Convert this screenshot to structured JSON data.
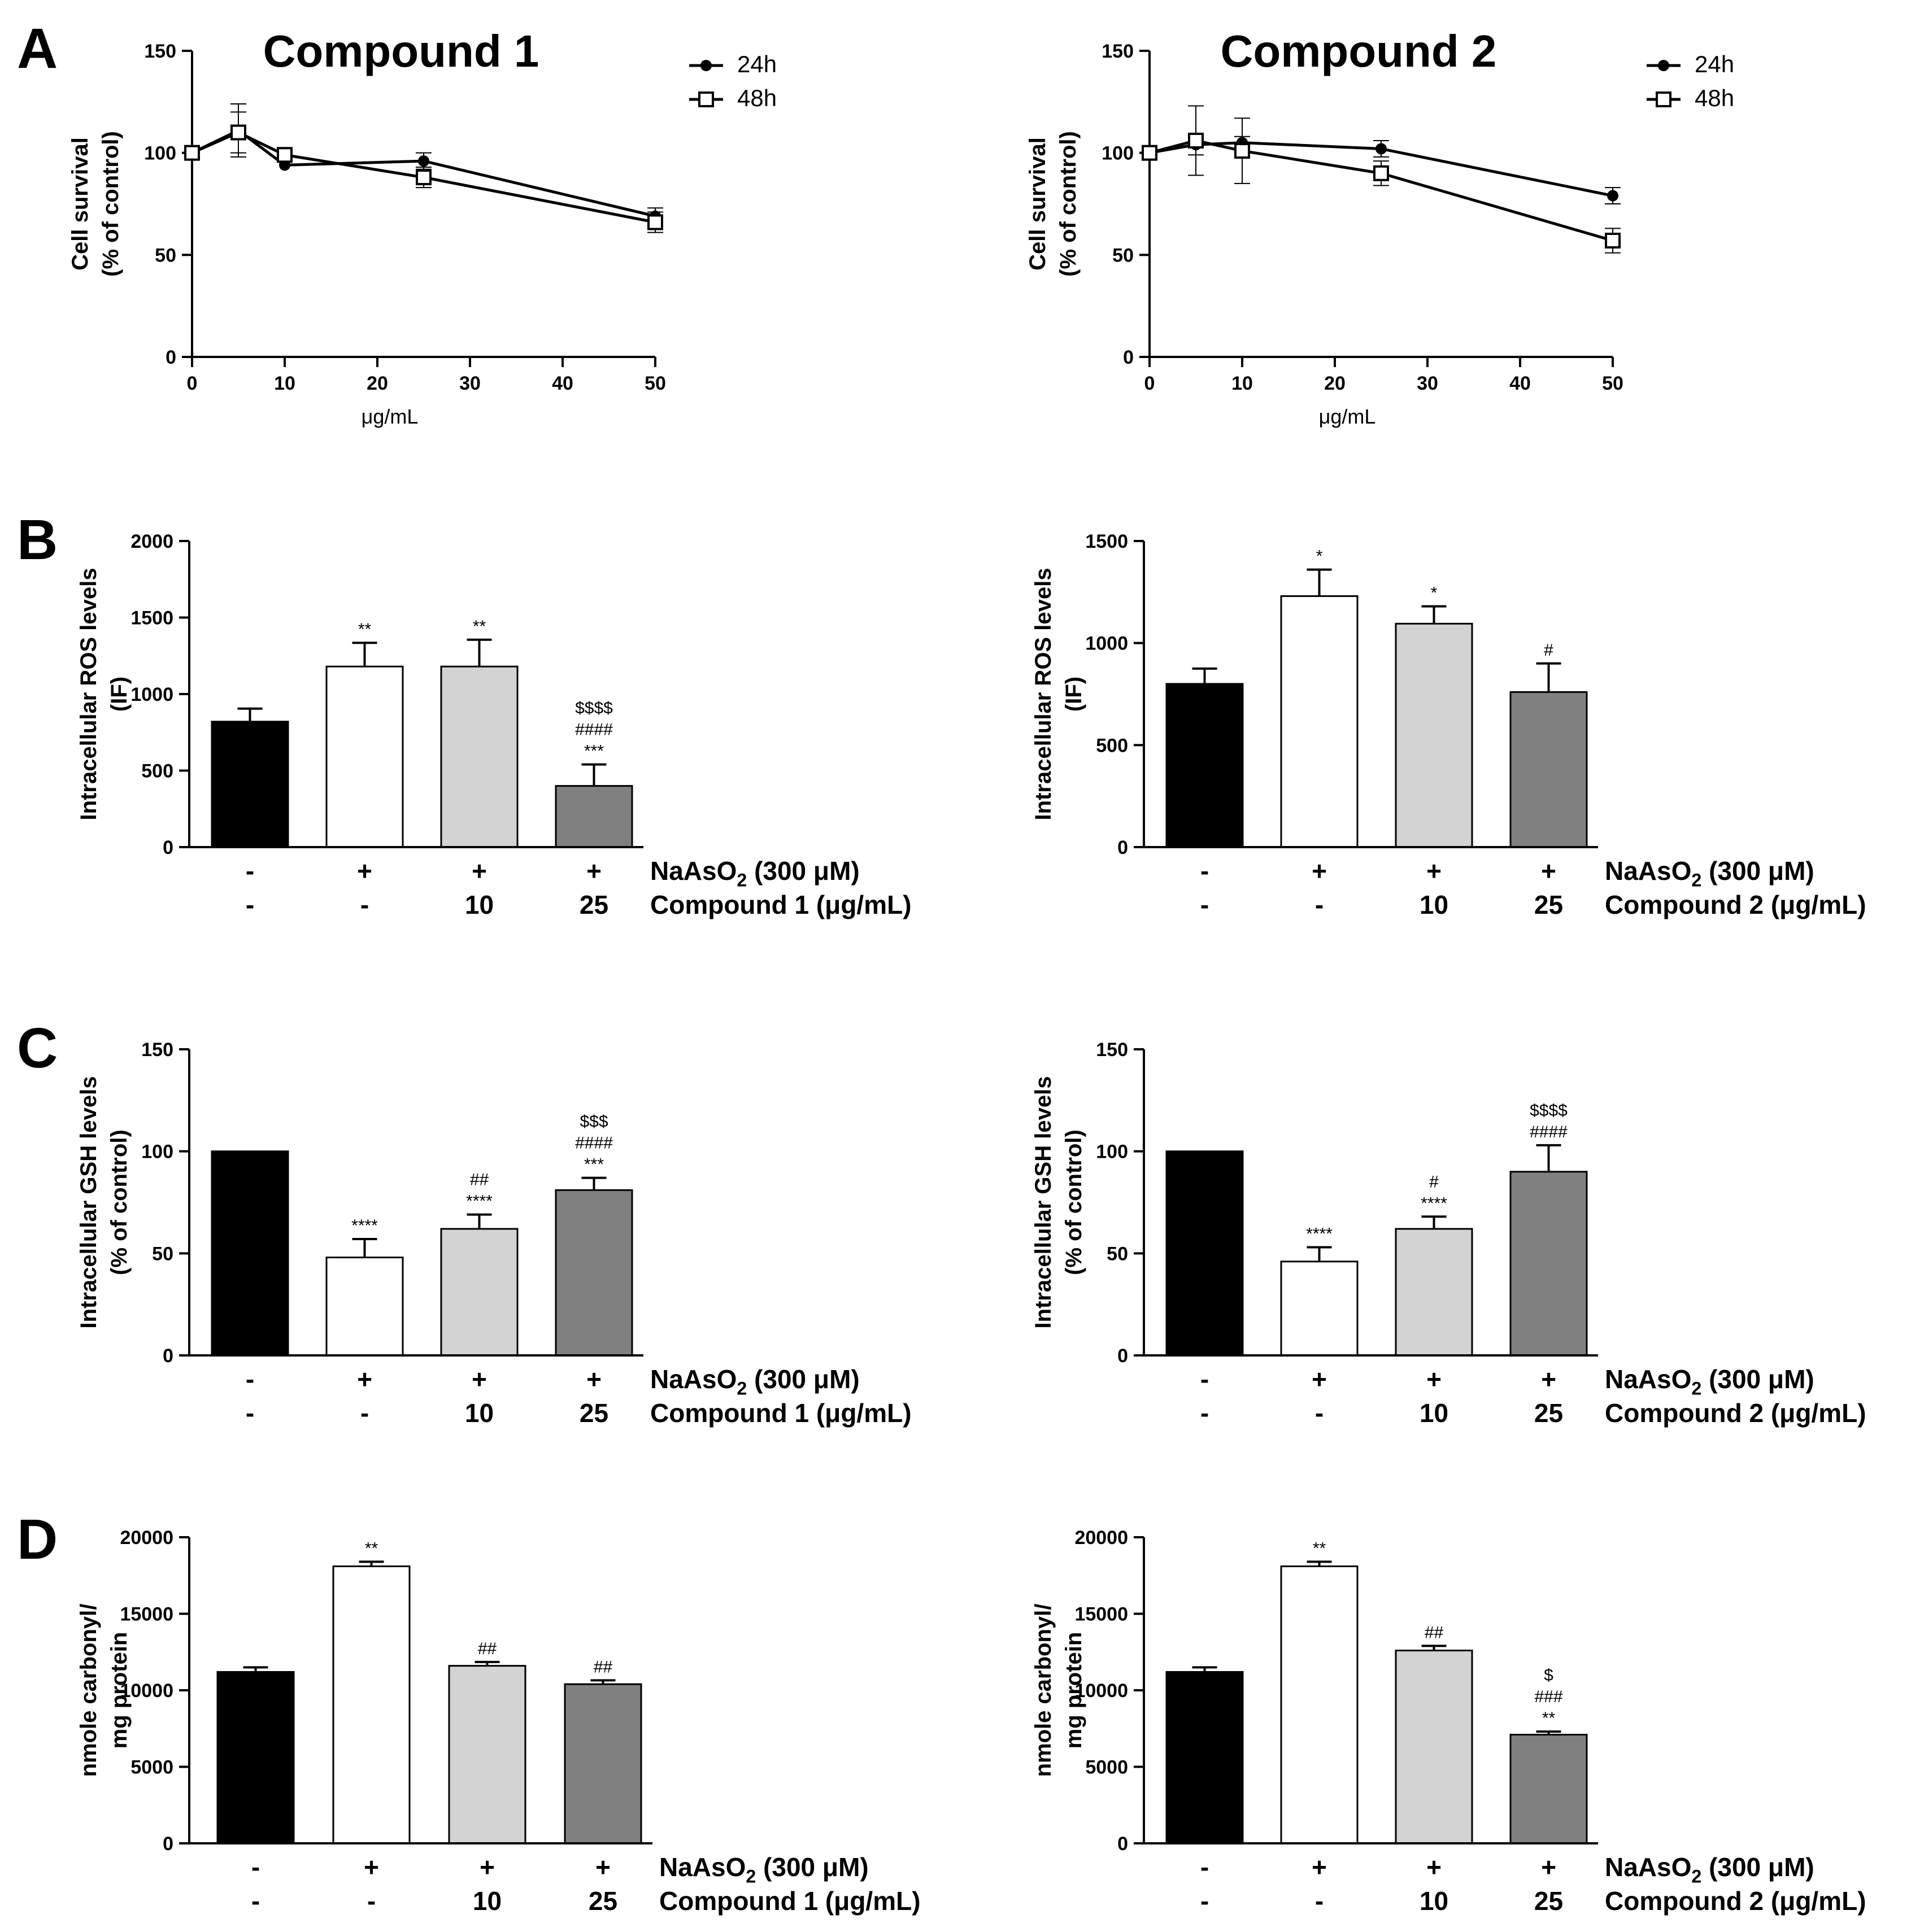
{
  "panel_letters": [
    "A",
    "B",
    "C",
    "D"
  ],
  "chart_data": [
    {
      "id": "A1",
      "type": "line",
      "panel": "A",
      "title": "Compound 1",
      "xlabel": "μg/mL",
      "ylabel": [
        "Cell survival",
        "(% of control)"
      ],
      "xlim": [
        0,
        50
      ],
      "ylim": [
        0,
        150
      ],
      "xticks": [
        0,
        10,
        20,
        30,
        40,
        50
      ],
      "yticks": [
        0,
        50,
        100,
        150
      ],
      "x": [
        0,
        5,
        10,
        25,
        50
      ],
      "series": [
        {
          "name": "24h",
          "marker": "circle",
          "values": [
            100,
            111,
            94,
            96,
            69
          ],
          "errors": [
            0,
            13,
            0,
            4,
            4
          ]
        },
        {
          "name": "48h",
          "marker": "square",
          "values": [
            100,
            110,
            99,
            88,
            66
          ],
          "errors": [
            0,
            10,
            0,
            5,
            5
          ]
        }
      ]
    },
    {
      "id": "A2",
      "type": "line",
      "panel": "",
      "title": "Compound 2",
      "xlabel": "μg/mL",
      "ylabel": [
        "Cell survival",
        "(% of control)"
      ],
      "xlim": [
        0,
        50
      ],
      "ylim": [
        0,
        150
      ],
      "xticks": [
        0,
        10,
        20,
        30,
        40,
        50
      ],
      "yticks": [
        0,
        50,
        100,
        150
      ],
      "x": [
        0,
        5,
        10,
        25,
        50
      ],
      "series": [
        {
          "name": "24h",
          "marker": "circle",
          "values": [
            100,
            104,
            105,
            102,
            79
          ],
          "errors": [
            0,
            5,
            3,
            4,
            4
          ]
        },
        {
          "name": "48h",
          "marker": "square",
          "values": [
            100,
            106,
            101,
            90,
            57
          ],
          "errors": [
            0,
            17,
            16,
            6,
            6
          ]
        }
      ]
    },
    {
      "id": "B1",
      "type": "bar",
      "panel": "B",
      "ylabel": [
        "Intracellular ROS levels",
        "(IF)"
      ],
      "ylim": [
        0,
        2000
      ],
      "yticks": [
        0,
        500,
        1000,
        1500,
        2000
      ],
      "values": [
        820,
        1180,
        1180,
        400
      ],
      "errors": [
        85,
        155,
        175,
        140
      ],
      "annotations": [
        [],
        [
          "**"
        ],
        [
          "**"
        ],
        [
          "$$$$",
          "####",
          "***"
        ]
      ],
      "conditions": [
        {
          "label": "NaAsO₂ (300 μM)",
          "values": [
            "-",
            "+",
            "+",
            "+"
          ]
        },
        {
          "label": "Compound 1 (μg/mL)",
          "values": [
            "-",
            "-",
            "10",
            "25"
          ]
        }
      ]
    },
    {
      "id": "B2",
      "type": "bar",
      "panel": "",
      "ylabel": [
        "Intracellular ROS levels",
        "(IF)"
      ],
      "ylim": [
        0,
        1500
      ],
      "yticks": [
        0,
        500,
        1000,
        1500
      ],
      "values": [
        800,
        1230,
        1095,
        760
      ],
      "errors": [
        75,
        130,
        85,
        140
      ],
      "annotations": [
        [],
        [
          "*"
        ],
        [
          "*"
        ],
        [
          "#"
        ]
      ],
      "conditions": [
        {
          "label": "NaAsO₂ (300 μM)",
          "values": [
            "-",
            "+",
            "+",
            "+"
          ]
        },
        {
          "label": "Compound 2 (μg/mL)",
          "values": [
            "-",
            "-",
            "10",
            "25"
          ]
        }
      ]
    },
    {
      "id": "C1",
      "type": "bar",
      "panel": "C",
      "ylabel": [
        "Intracellular GSH levels",
        "(% of control)"
      ],
      "ylim": [
        0,
        150
      ],
      "yticks": [
        0,
        50,
        100,
        150
      ],
      "values": [
        100,
        48,
        62,
        81
      ],
      "errors": [
        0,
        9,
        7,
        6
      ],
      "annotations": [
        [],
        [
          "****"
        ],
        [
          "##",
          "****"
        ],
        [
          "$$$",
          "####",
          "***"
        ]
      ],
      "conditions": [
        {
          "label": "NaAsO₂ (300 μM)",
          "values": [
            "-",
            "+",
            "+",
            "+"
          ]
        },
        {
          "label": "Compound 1 (μg/mL)",
          "values": [
            "-",
            "-",
            "10",
            "25"
          ]
        }
      ]
    },
    {
      "id": "C2",
      "type": "bar",
      "panel": "",
      "ylabel": [
        "Intracellular GSH levels",
        "(% of control)"
      ],
      "ylim": [
        0,
        150
      ],
      "yticks": [
        0,
        50,
        100,
        150
      ],
      "values": [
        100,
        46,
        62,
        90
      ],
      "errors": [
        0,
        7,
        6,
        13
      ],
      "annotations": [
        [],
        [
          "****"
        ],
        [
          "#",
          "****"
        ],
        [
          "$$$$",
          "####"
        ]
      ],
      "conditions": [
        {
          "label": "NaAsO₂ (300 μM)",
          "values": [
            "-",
            "+",
            "+",
            "+"
          ]
        },
        {
          "label": "Compound 2 (μg/mL)",
          "values": [
            "-",
            "-",
            "10",
            "25"
          ]
        }
      ]
    },
    {
      "id": "D1",
      "type": "bar",
      "panel": "D",
      "ylabel": [
        "nmole carbonyl/",
        "mg protein"
      ],
      "ylim": [
        0,
        20000
      ],
      "yticks": [
        0,
        5000,
        10000,
        15000,
        20000
      ],
      "values": [
        11200,
        18100,
        11600,
        10400
      ],
      "errors": [
        300,
        300,
        250,
        250
      ],
      "annotations": [
        [],
        [
          "**"
        ],
        [
          "##"
        ],
        [
          "##"
        ]
      ],
      "conditions": [
        {
          "label": "NaAsO₂ (300 μM)",
          "values": [
            "-",
            "+",
            "+",
            "+"
          ]
        },
        {
          "label": "Compound 1 (μg/mL)",
          "values": [
            "-",
            "-",
            "10",
            "25"
          ]
        }
      ]
    },
    {
      "id": "D2",
      "type": "bar",
      "panel": "",
      "ylabel": [
        "nmole carbonyl/",
        "mg protein"
      ],
      "ylim": [
        0,
        20000
      ],
      "yticks": [
        0,
        5000,
        10000,
        15000,
        20000
      ],
      "values": [
        11200,
        18100,
        12600,
        7100
      ],
      "errors": [
        300,
        300,
        300,
        200
      ],
      "annotations": [
        [],
        [
          "**"
        ],
        [
          "##"
        ],
        [
          "$",
          "###",
          "**"
        ]
      ],
      "conditions": [
        {
          "label": "NaAsO₂ (300 μM)",
          "values": [
            "-",
            "+",
            "+",
            "+"
          ]
        },
        {
          "label": "Compound 2 (μg/mL)",
          "values": [
            "-",
            "-",
            "10",
            "25"
          ]
        }
      ]
    }
  ],
  "colors": {
    "bar_fills": [
      "#000000",
      "#ffffff",
      "#d3d3d3",
      "#808080"
    ],
    "stroke": "#000000"
  }
}
